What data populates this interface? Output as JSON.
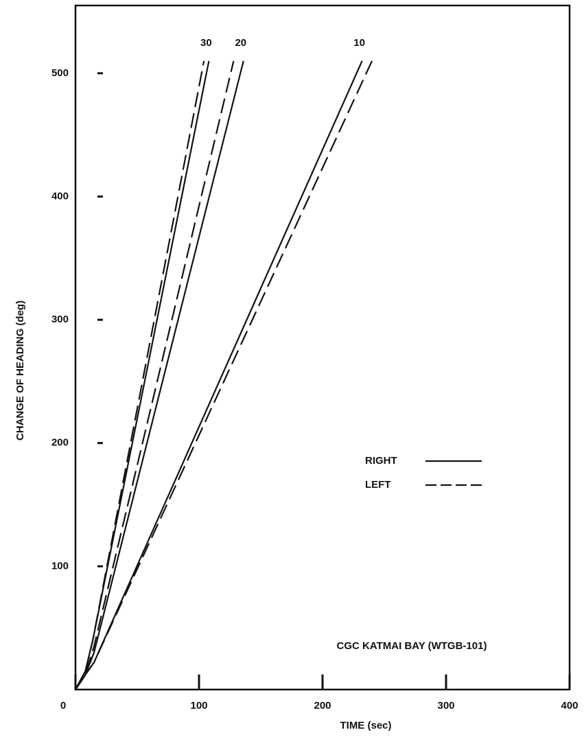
{
  "chart_data": {
    "type": "line",
    "xlabel": "TIME (sec)",
    "ylabel": "CHANGE OF HEADING (deg)",
    "annotation": "CGC KATMAI BAY (WTGB-101)",
    "xlim": [
      0,
      400
    ],
    "xticks": [
      0,
      100,
      200,
      300,
      400
    ],
    "ylim": [
      0,
      555
    ],
    "yticks": [
      100,
      200,
      300,
      400,
      500
    ],
    "legend": [
      {
        "label": "RIGHT",
        "style": "solid"
      },
      {
        "label": "LEFT",
        "style": "dashed"
      }
    ],
    "series": [
      {
        "label": "30",
        "style": "solid",
        "x": [
          0,
          8,
          14,
          108
        ],
        "values": [
          0,
          15,
          40,
          510
        ]
      },
      {
        "style": "dashed",
        "x": [
          0,
          8,
          14,
          104
        ],
        "values": [
          0,
          15,
          40,
          510
        ]
      },
      {
        "label": "20",
        "style": "solid",
        "x": [
          0,
          8,
          15,
          136
        ],
        "values": [
          0,
          12,
          30,
          510
        ]
      },
      {
        "style": "dashed",
        "x": [
          0,
          8,
          15,
          128
        ],
        "values": [
          0,
          12,
          35,
          510
        ]
      },
      {
        "label": "10",
        "style": "solid",
        "x": [
          0,
          8,
          15,
          232
        ],
        "values": [
          0,
          12,
          22,
          510
        ]
      },
      {
        "style": "dashed",
        "x": [
          0,
          8,
          15,
          240
        ],
        "values": [
          0,
          12,
          22,
          510
        ]
      }
    ]
  }
}
